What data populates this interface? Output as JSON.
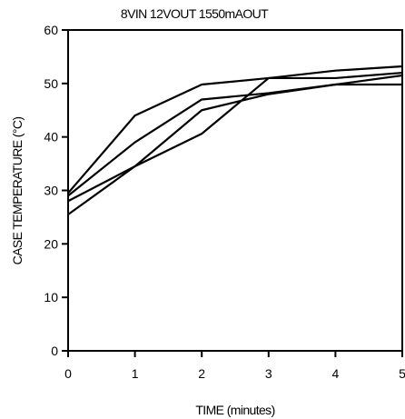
{
  "chart_data": {
    "type": "line",
    "title": "8VIN 12VOUT 1550mAOUT",
    "xlabel": "TIME (minutes)",
    "ylabel": "CASE TEMPERATURE (°C)",
    "xlim": [
      0,
      5
    ],
    "ylim": [
      0,
      60
    ],
    "xticks": [
      "0",
      "1",
      "2",
      "3",
      "4",
      "5"
    ],
    "yticks": [
      "0",
      "10",
      "20",
      "30",
      "40",
      "50",
      "60"
    ],
    "grid": false,
    "legend": "none",
    "x": [
      0,
      1,
      2,
      3,
      4,
      5
    ],
    "series": [
      {
        "values": [
          29.5,
          44.0,
          49.8,
          51.0,
          51.0,
          52.0
        ]
      },
      {
        "values": [
          29.0,
          39.0,
          47.0,
          48.2,
          49.8,
          49.8
        ]
      },
      {
        "values": [
          28.0,
          34.5,
          45.0,
          48.0,
          49.8,
          51.5
        ]
      },
      {
        "values": [
          25.5,
          34.5,
          40.6,
          51.0,
          52.4,
          53.2
        ]
      }
    ]
  }
}
